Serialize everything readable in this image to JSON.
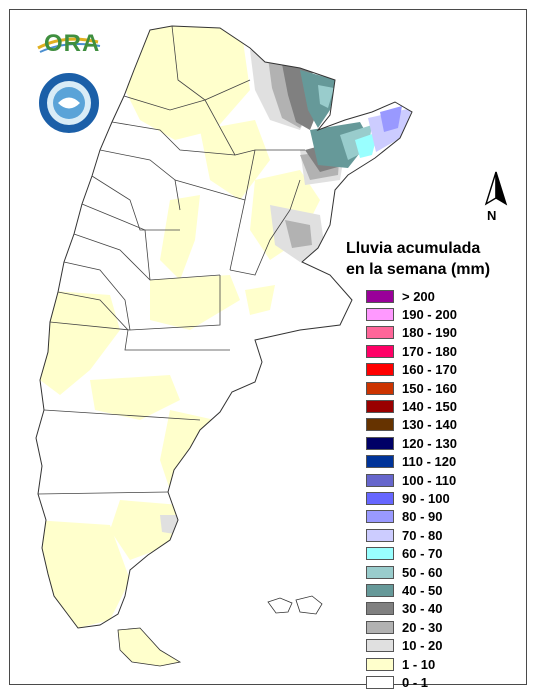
{
  "logo": {
    "ora_text": "ORA",
    "seal_name": "seal-icon"
  },
  "north": {
    "label": "N",
    "icon": "north-arrow-icon"
  },
  "legend": {
    "title_line1": "Lluvia acumulada",
    "title_line2": "en la semana (mm)",
    "items": [
      {
        "label": "> 200",
        "color": "#990099"
      },
      {
        "label": "190 - 200",
        "color": "#ff99ff"
      },
      {
        "label": "180 - 190",
        "color": "#ff6699"
      },
      {
        "label": "170 - 180",
        "color": "#ff0066"
      },
      {
        "label": "160 - 170",
        "color": "#ff0000"
      },
      {
        "label": "150 - 160",
        "color": "#cc3300"
      },
      {
        "label": "140 - 150",
        "color": "#990000"
      },
      {
        "label": "130 - 140",
        "color": "#663300"
      },
      {
        "label": "120 - 130",
        "color": "#000066"
      },
      {
        "label": "110 - 120",
        "color": "#003399"
      },
      {
        "label": "100 - 110",
        "color": "#6666cc"
      },
      {
        "label": "90 - 100",
        "color": "#6666ff"
      },
      {
        "label": "80 - 90",
        "color": "#9999ff"
      },
      {
        "label": "70 - 80",
        "color": "#ccccff"
      },
      {
        "label": "60 - 70",
        "color": "#99ffff"
      },
      {
        "label": "50 - 60",
        "color": "#99cccc"
      },
      {
        "label": "40 - 50",
        "color": "#669999"
      },
      {
        "label": "30 - 40",
        "color": "#808080"
      },
      {
        "label": "20 - 30",
        "color": "#b2b2b2"
      },
      {
        "label": "10 - 20",
        "color": "#e0e0e0"
      },
      {
        "label": "1 - 10",
        "color": "#ffffcc"
      },
      {
        "label": "0 - 1",
        "color": "#ffffff"
      }
    ]
  }
}
